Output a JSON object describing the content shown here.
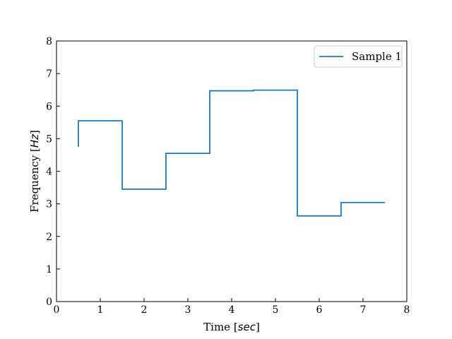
{
  "chart_data": {
    "type": "line",
    "drawstyle": "steps-post",
    "xlabel": "Time [",
    "xlabel_math": "sec",
    "xlabel_end": "]",
    "ylabel": "Frequency [",
    "ylabel_math": "Hz",
    "ylabel_end": "]",
    "xlim": [
      0,
      8
    ],
    "ylim": [
      0,
      8
    ],
    "xticks": [
      "0",
      "1",
      "2",
      "3",
      "4",
      "5",
      "6",
      "7",
      "8"
    ],
    "yticks": [
      "0",
      "1",
      "2",
      "3",
      "4",
      "5",
      "6",
      "7",
      "8"
    ],
    "grid": false,
    "legend_position": "upper right",
    "series": [
      {
        "name": "Sample 1",
        "color": "#1f77b4",
        "points": [
          {
            "x": 0.5,
            "y": 4.75
          },
          {
            "x": 0.5,
            "y": 5.55
          },
          {
            "x": 1.5,
            "y": 3.45
          },
          {
            "x": 2.5,
            "y": 4.55
          },
          {
            "x": 3.5,
            "y": 6.47
          },
          {
            "x": 4.5,
            "y": 6.49
          },
          {
            "x": 5.5,
            "y": 2.63
          },
          {
            "x": 6.5,
            "y": 3.04
          },
          {
            "x": 7.5,
            "y": 3.04
          }
        ]
      }
    ]
  }
}
